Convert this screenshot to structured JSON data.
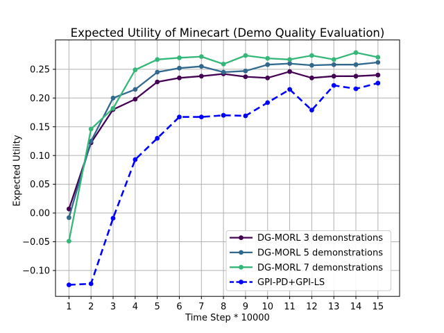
{
  "chart_data": {
    "type": "line",
    "title": "Expected Utility of Minecart (Demo Quality Evaluation)",
    "xlabel": "Time Step * 10000",
    "ylabel": "Expected Utility",
    "x": [
      1,
      2,
      3,
      4,
      5,
      6,
      7,
      8,
      9,
      10,
      11,
      12,
      13,
      14,
      15
    ],
    "xtick_labels": [
      "1",
      "2",
      "3",
      "4",
      "5",
      "6",
      "7",
      "8",
      "9",
      "10",
      "11",
      "12",
      "13",
      "14",
      "15"
    ],
    "yticks": [
      -0.1,
      -0.05,
      0.0,
      0.05,
      0.1,
      0.15,
      0.2,
      0.25
    ],
    "ytick_labels": [
      "−0.10",
      "−0.05",
      "0.00",
      "0.05",
      "0.10",
      "0.15",
      "0.20",
      "0.25"
    ],
    "xlim": [
      0.39,
      15.98
    ],
    "ylim": [
      -0.145,
      0.301
    ],
    "grid": true,
    "grid_color": "#b0b0b0",
    "background_color": "#ffffff",
    "legend": {
      "position": "lower right"
    },
    "series": [
      {
        "name": "DG-MORL 3 demonstrations",
        "color": "#440154",
        "style": "solid",
        "marker": "circle",
        "values": [
          0.007,
          0.122,
          0.18,
          0.198,
          0.228,
          0.235,
          0.238,
          0.242,
          0.237,
          0.235,
          0.246,
          0.235,
          0.238,
          0.238,
          0.24
        ]
      },
      {
        "name": "DG-MORL 5 demonstrations",
        "color": "#31688e",
        "style": "solid",
        "marker": "circle",
        "values": [
          -0.008,
          0.125,
          0.2,
          0.215,
          0.245,
          0.252,
          0.255,
          0.245,
          0.247,
          0.258,
          0.26,
          0.257,
          0.258,
          0.258,
          0.262
        ]
      },
      {
        "name": "DG-MORL 7 demonstrations",
        "color": "#35b779",
        "style": "solid",
        "marker": "circle",
        "values": [
          -0.049,
          0.146,
          0.182,
          0.249,
          0.267,
          0.27,
          0.272,
          0.259,
          0.274,
          0.269,
          0.267,
          0.274,
          0.267,
          0.279,
          0.271
        ]
      },
      {
        "name": "GPI-PD+GPI-LS",
        "color": "#0000ff",
        "style": "dashed",
        "marker": "circle",
        "values": [
          -0.125,
          -0.123,
          -0.009,
          0.093,
          0.13,
          0.167,
          0.167,
          0.17,
          0.169,
          0.192,
          0.215,
          0.179,
          0.222,
          0.216,
          0.226
        ]
      }
    ]
  }
}
